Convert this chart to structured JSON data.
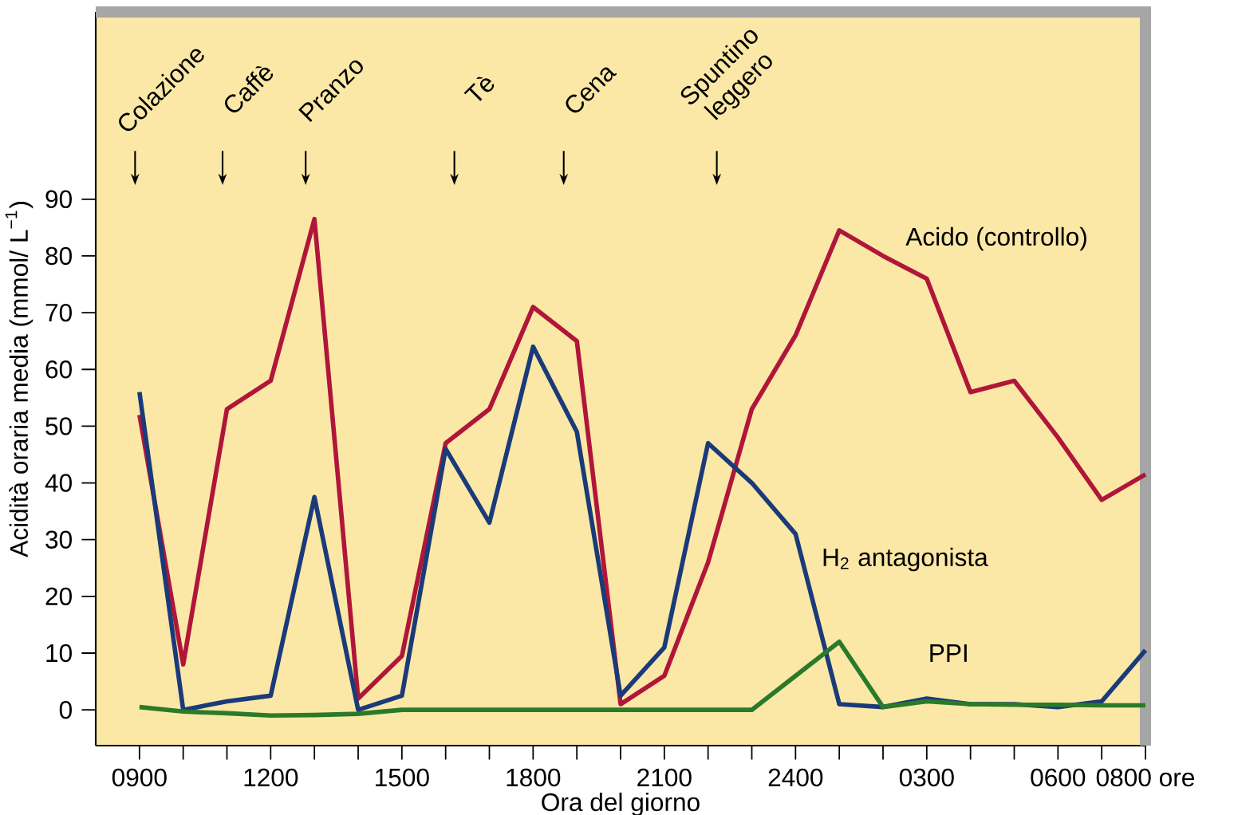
{
  "chart_data": {
    "type": "line",
    "xlabel": "Ora del giorno",
    "ylabel": "Acidità oraria media (mmol/ L$^{−1}$)",
    "categories": [
      "0900",
      null,
      null,
      "1200",
      null,
      null,
      "1500",
      null,
      null,
      "1800",
      null,
      null,
      "2100",
      null,
      null,
      "2400",
      null,
      null,
      "0300",
      null,
      null,
      "0600",
      null,
      "0800 ore"
    ],
    "ylim": [
      -6.3,
      123
    ],
    "yticks": [
      0,
      10,
      20,
      30,
      40,
      50,
      60,
      70,
      80,
      90
    ],
    "marker": "none",
    "line_style": "solid",
    "series": [
      {
        "name": "Acido (controllo)",
        "color": "#b0163a",
        "values": [
          52,
          8,
          53,
          58,
          86.5,
          2,
          9.5,
          47,
          53,
          71,
          65,
          1,
          6,
          26,
          53,
          66,
          84.5,
          80,
          76,
          56,
          58,
          48,
          37,
          41.5
        ]
      },
      {
        "name": "H$_{2}$ antagonista",
        "color": "#1a3a7a",
        "values": [
          56,
          0,
          1.5,
          2.5,
          37.5,
          0,
          2.5,
          46,
          33,
          64,
          49,
          2.5,
          11,
          47,
          40,
          31,
          1,
          0.5,
          2,
          1,
          1,
          0.5,
          1.5,
          10.5
        ]
      },
      {
        "name": "PPI",
        "color": "#2a7a2a",
        "values": [
          0.5,
          -0.3,
          -0.6,
          -1,
          -0.9,
          -0.7,
          0,
          0,
          0,
          0,
          0,
          0,
          0,
          0,
          0,
          6,
          12,
          0.5,
          1.5,
          1,
          0.9,
          0.9,
          0.8,
          0.8
        ]
      }
    ],
    "annotations": [
      "Colazione",
      "Caffè",
      "Pranzo",
      "Tè",
      "Cena",
      "Spuntino leggero"
    ]
  }
}
